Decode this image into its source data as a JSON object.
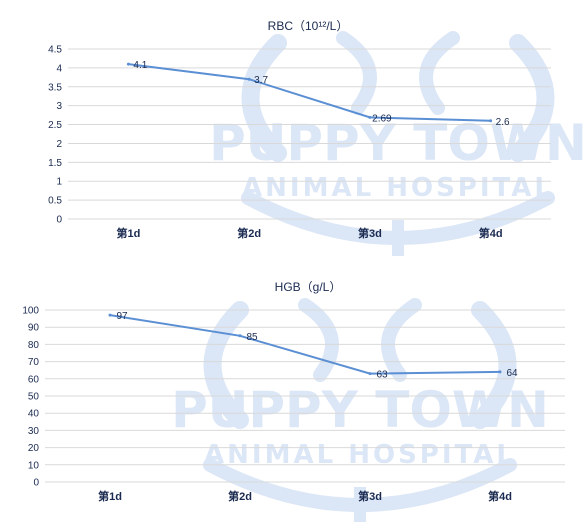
{
  "colors": {
    "series": "#5b8fd4",
    "watermark": "#dbe6f6",
    "text": "#1a2a50",
    "grid": "#d9d9d9"
  },
  "watermark": {
    "line1": "PUPPY TOWN",
    "line2": "ANIMAL HOSPITAL"
  },
  "chart_data": [
    {
      "type": "line",
      "title": "RBC（10¹²/L）",
      "categories": [
        "第1d",
        "第2d",
        "第3d",
        "第4d"
      ],
      "values": [
        4.1,
        3.7,
        2.69,
        2.6
      ],
      "data_labels": [
        "4.1",
        "3.7",
        "2.69",
        "2.6"
      ],
      "yticks": [
        "0",
        "0.5",
        "1",
        "1.5",
        "2",
        "2.5",
        "3",
        "3.5",
        "4",
        "4.5"
      ],
      "ylim": [
        0,
        4.5
      ],
      "grid": true,
      "legend": "none"
    },
    {
      "type": "line",
      "title": "HGB（g/L）",
      "categories": [
        "第1d",
        "第2d",
        "第3d",
        "第4d"
      ],
      "values": [
        97,
        85,
        63,
        64
      ],
      "data_labels": [
        "97",
        "85",
        "63",
        "64"
      ],
      "yticks": [
        "0",
        "10",
        "20",
        "30",
        "40",
        "50",
        "60",
        "70",
        "80",
        "90",
        "100"
      ],
      "ylim": [
        0,
        100
      ],
      "grid": true,
      "legend": "none"
    }
  ]
}
